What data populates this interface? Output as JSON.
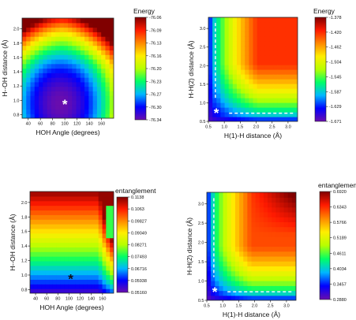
{
  "chart_data": [
    {
      "type": "heatmap",
      "title": "",
      "xlabel": "HOH Angle (degrees)",
      "ylabel": "H--OH distance (Å)",
      "xlim": [
        30,
        180
      ],
      "ylim": [
        0.75,
        2.15
      ],
      "xticks": [
        "40",
        "60",
        "80",
        "100",
        "120",
        "140",
        "160"
      ],
      "yticks": [
        "0.8",
        "1.0",
        "1.2",
        "1.4",
        "1.6",
        "1.8",
        "2.0"
      ],
      "colorbar": {
        "label": "Energy",
        "ticks": [
          "-76.06",
          "-76.09",
          "-76.13",
          "-76.16",
          "-76.20",
          "-76.23",
          "-76.27",
          "-76.30",
          "-76.34"
        ],
        "min": -76.34,
        "max": -76.06,
        "colors": [
          "#6a0dad",
          "#0000ff",
          "#00b7ff",
          "#00ff66",
          "#b7ff00",
          "#ffee00",
          "#ff8800",
          "#ff1a00",
          "#800000"
        ]
      },
      "annotations": [
        {
          "text": "*",
          "x": 100,
          "y": 0.96,
          "color": "#ffffff"
        }
      ]
    },
    {
      "type": "heatmap",
      "title": "",
      "xlabel": "H(1)-H distance (Å)",
      "ylabel": "H-H(2) distance (Å)",
      "xlim": [
        0.5,
        3.3
      ],
      "ylim": [
        0.5,
        3.3
      ],
      "xticks": [
        "0.5",
        "1.0",
        "1.5",
        "2.0",
        "2.5",
        "3.0"
      ],
      "yticks": [
        "0.5",
        "1.0",
        "1.5",
        "2.0",
        "2.5",
        "3.0"
      ],
      "colorbar": {
        "label": "Energy",
        "ticks": [
          "-1.378",
          "-1.420",
          "-1.462",
          "-1.504",
          "-1.545",
          "-1.587",
          "-1.629",
          "-1.671"
        ],
        "min": -1.671,
        "max": -1.378,
        "colors": [
          "#6a0dad",
          "#0000ff",
          "#00b7ff",
          "#00ff66",
          "#b7ff00",
          "#ffee00",
          "#ff8800",
          "#ff1a00",
          "#800000"
        ]
      },
      "annotations": [
        {
          "text": "*",
          "x": 0.75,
          "y": 0.75,
          "color": "#ffffff"
        }
      ]
    },
    {
      "type": "heatmap",
      "title": "",
      "xlabel": "HOH Angle (degrees)",
      "ylabel": "H--OH distance (Å)",
      "xlim": [
        30,
        180
      ],
      "ylim": [
        0.75,
        2.15
      ],
      "xticks": [
        "40",
        "60",
        "80",
        "100",
        "120",
        "140",
        "160"
      ],
      "yticks": [
        "0.8",
        "1.0",
        "1.2",
        "1.4",
        "1.6",
        "1.8",
        "2.0"
      ],
      "colorbar": {
        "label": "entanglement",
        "ticks": [
          "0.1138",
          "0.1063",
          "0.09827",
          "0.09049",
          "0.08271",
          "0.07493",
          "0.06716",
          "0.05938",
          "0.05160"
        ],
        "min": 0.0516,
        "max": 0.1138,
        "colors": [
          "#6a0dad",
          "#0000ff",
          "#00b7ff",
          "#00ff66",
          "#b7ff00",
          "#ffee00",
          "#ff8800",
          "#ff1a00",
          "#800000"
        ]
      },
      "annotations": [
        {
          "text": "*",
          "x": 103,
          "y": 0.96,
          "color": "#111111"
        }
      ]
    },
    {
      "type": "heatmap",
      "title": "",
      "xlabel": "H(1)-H distance (Å)",
      "ylabel": "H-H(2) distance (Å)",
      "xlim": [
        0.5,
        3.3
      ],
      "ylim": [
        0.5,
        3.3
      ],
      "xticks": [
        "0.5",
        "1.0",
        "1.5",
        "2.0",
        "2.5",
        "3.0"
      ],
      "yticks": [
        "0.5",
        "1.0",
        "1.5",
        "2.0",
        "2.5",
        "3.0"
      ],
      "colorbar": {
        "label": "entanglement",
        "ticks": [
          "0.6920",
          "0.6343",
          "0.5766",
          "0.5189",
          "0.4611",
          "0.4034",
          "0.3457",
          "0.2880"
        ],
        "min": 0.288,
        "max": 0.692,
        "colors": [
          "#6a0dad",
          "#0000ff",
          "#00b7ff",
          "#00ff66",
          "#b7ff00",
          "#ffee00",
          "#ff8800",
          "#ff1a00",
          "#800000"
        ]
      },
      "annotations": [
        {
          "text": "*",
          "x": 0.75,
          "y": 0.75,
          "color": "#ffffff"
        }
      ]
    }
  ]
}
